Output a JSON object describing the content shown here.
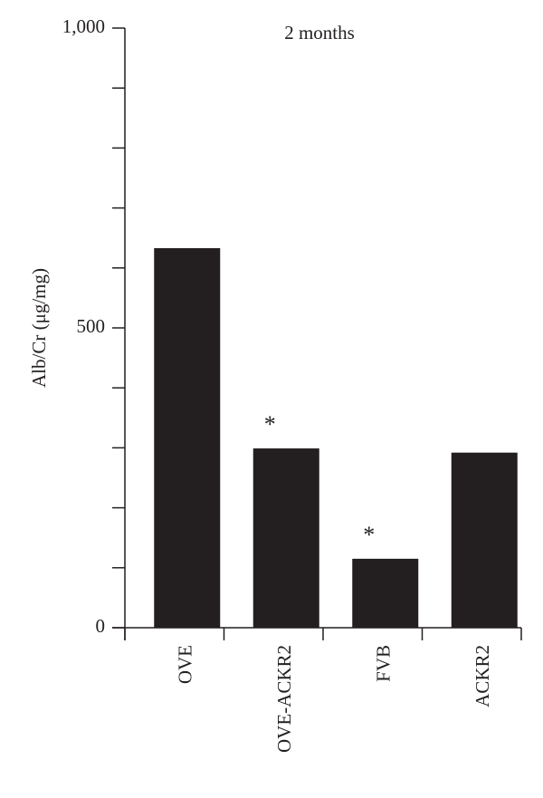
{
  "chart_data": {
    "type": "bar",
    "title": "2 months",
    "y_label": "Alb/Cr (μg/mg)",
    "categories": [
      "OVE",
      "OVE-ACKR2",
      "FVB",
      "ACKR2"
    ],
    "values": [
      633,
      299,
      115,
      292
    ],
    "annotations": [
      null,
      "*",
      "*",
      null
    ],
    "color": "#231f20",
    "ylim": [
      0,
      1000
    ],
    "yticks": [
      0,
      500,
      {
        "value": 1000,
        "label": "1,000"
      }
    ],
    "minor_yticks": [
      100,
      200,
      300,
      400,
      600,
      700,
      800,
      900
    ]
  }
}
